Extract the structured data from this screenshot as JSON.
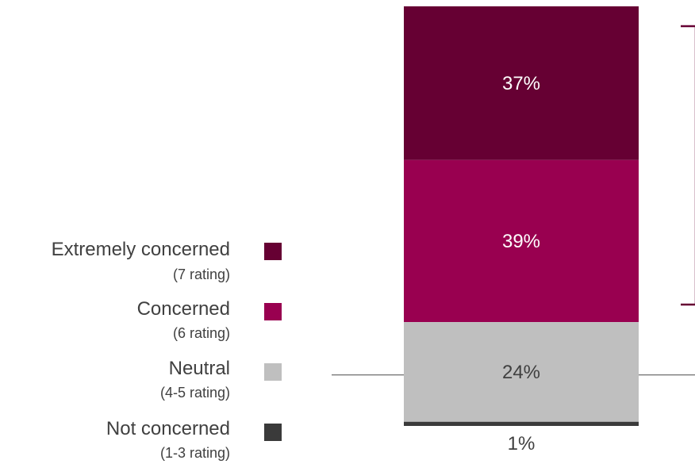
{
  "chart_data": {
    "type": "bar",
    "orientation": "stacked-vertical",
    "categories": [
      ""
    ],
    "ylim": [
      0,
      101
    ],
    "series": [
      {
        "name": "Extremely concerned",
        "sublabel": "(7 rating)",
        "values": [
          37
        ],
        "label": "37%",
        "color": "#660033",
        "label_color": "#ffffff"
      },
      {
        "name": "Concerned",
        "sublabel": "(6 rating)",
        "values": [
          39
        ],
        "label": "39%",
        "color": "#990050",
        "label_color": "#ffffff"
      },
      {
        "name": "Neutral",
        "sublabel": "(4-5 rating)",
        "values": [
          24
        ],
        "label": "24%",
        "color": "#bfbfbf",
        "label_color": "#404040"
      },
      {
        "name": "Not concerned",
        "sublabel": "(1-3 rating)",
        "values": [
          1
        ],
        "label": "1%",
        "color": "#3a3a3a",
        "label_color": "#404040"
      }
    ],
    "legend": {
      "position": "left"
    },
    "bracket": {
      "spans": [
        "Extremely concerned",
        "Concerned"
      ],
      "color": "#660033"
    },
    "reference_line_color": "#7f7f7f",
    "grid": false
  }
}
